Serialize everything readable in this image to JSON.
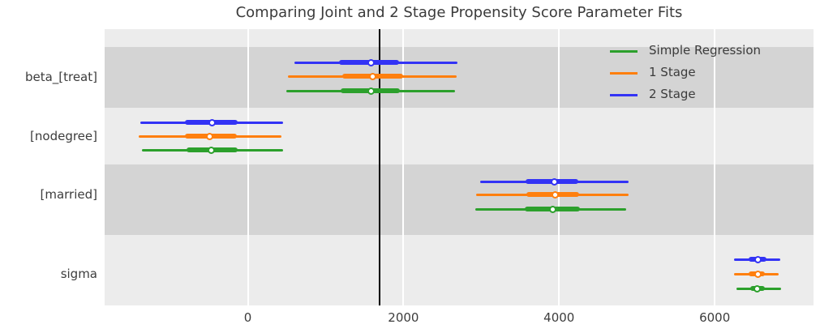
{
  "title": "Comparing Joint and 2 Stage Propensity Score Parameter Fits",
  "legend": [
    {
      "label": "Simple Regression",
      "color": "#2ca02c"
    },
    {
      "label": "1 Stage",
      "color": "#ff7f0e"
    },
    {
      "label": "2 Stage",
      "color": "#3333f5"
    }
  ],
  "colors": {
    "plot_background": "#ececec",
    "band_shade": "#d4d4d4",
    "gridline": "#ffffff",
    "reference_line": "#000000",
    "marker_face": "#ffffff"
  },
  "chart_data": {
    "type": "forest",
    "title": "Comparing Joint and 2 Stage Propensity Score Parameter Fits",
    "xlabel": "",
    "ylabel": "",
    "xlim": [
      -1840,
      7270
    ],
    "x_ticks": [
      0,
      2000,
      4000,
      6000
    ],
    "reference_line_x": 1695,
    "grid": "vertical white gridlines on alternating gray bands",
    "legend_position": "upper right",
    "series_order_top_to_bottom": [
      "2 Stage",
      "1 Stage",
      "Simple Regression"
    ],
    "rows": [
      {
        "label": "beta_[treat]",
        "series": [
          {
            "name": "2 Stage",
            "median": 1580,
            "inner": [
              1175,
              1945
            ],
            "outer": [
              600,
              2695
            ]
          },
          {
            "name": "1 Stage",
            "median": 1600,
            "inner": [
              1215,
              1995
            ],
            "outer": [
              515,
              2685
            ]
          },
          {
            "name": "Simple Regression",
            "median": 1580,
            "inner": [
              1195,
              1955
            ],
            "outer": [
              495,
              2665
            ]
          }
        ]
      },
      {
        "label": "[nodegree]",
        "series": [
          {
            "name": "2 Stage",
            "median": -455,
            "inner": [
              -810,
              -130
            ],
            "outer": [
              -1380,
              455
            ]
          },
          {
            "name": "1 Stage",
            "median": -485,
            "inner": [
              -810,
              -140
            ],
            "outer": [
              -1400,
              435
            ]
          },
          {
            "name": "Simple Regression",
            "median": -465,
            "inner": [
              -785,
              -130
            ],
            "outer": [
              -1360,
              455
            ]
          }
        ]
      },
      {
        "label": "[married]",
        "series": [
          {
            "name": "2 Stage",
            "median": 3935,
            "inner": [
              3570,
              4250
            ],
            "outer": [
              2990,
              4895
            ]
          },
          {
            "name": "1 Stage",
            "median": 3945,
            "inner": [
              3580,
              4260
            ],
            "outer": [
              2935,
              4895
            ]
          },
          {
            "name": "Simple Regression",
            "median": 3915,
            "inner": [
              3560,
              4270
            ],
            "outer": [
              2925,
              4865
            ]
          }
        ]
      },
      {
        "label": "sigma",
        "series": [
          {
            "name": "2 Stage",
            "median": 6555,
            "inner": [
              6440,
              6670
            ],
            "outer": [
              6250,
              6845
            ]
          },
          {
            "name": "1 Stage",
            "median": 6555,
            "inner": [
              6440,
              6645
            ],
            "outer": [
              6250,
              6825
            ]
          },
          {
            "name": "Simple Regression",
            "median": 6545,
            "inner": [
              6460,
              6645
            ],
            "outer": [
              6280,
              6855
            ]
          }
        ]
      }
    ]
  }
}
